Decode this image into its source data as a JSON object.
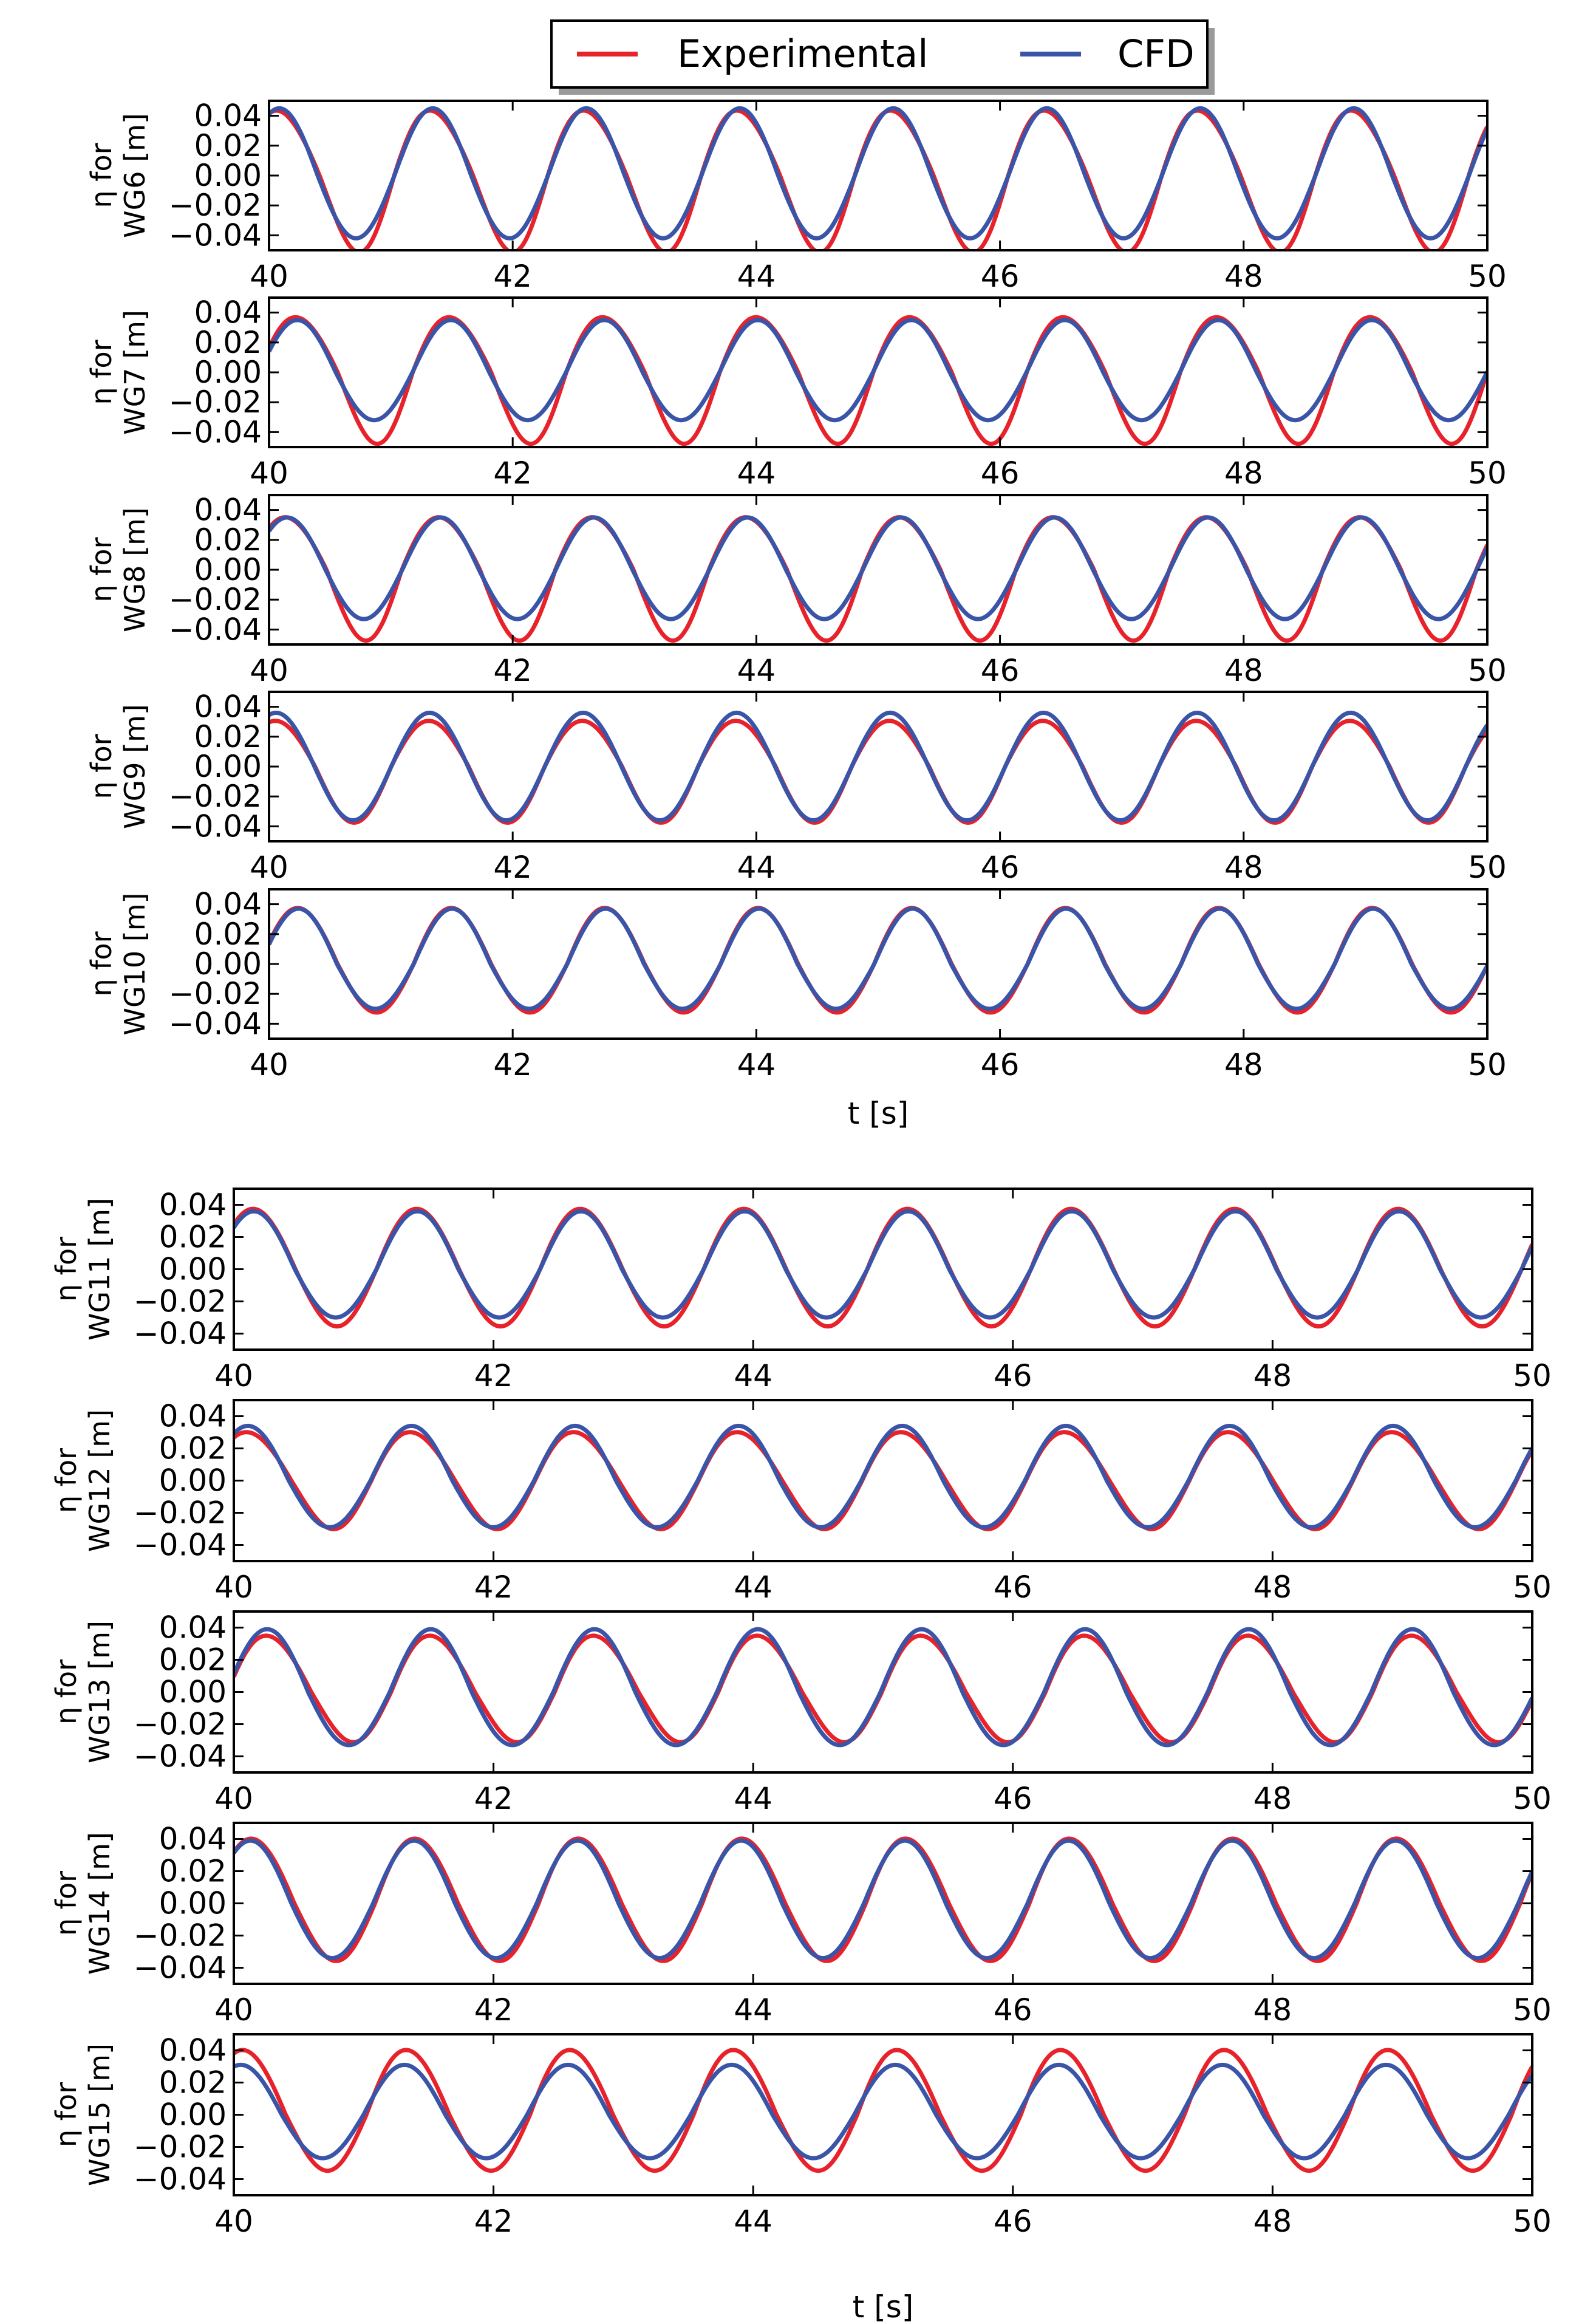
{
  "legend": {
    "entries": [
      {
        "label": "Experimental",
        "color": "#e8222a"
      },
      {
        "label": "CFD",
        "color": "#3a55a8"
      }
    ]
  },
  "chart_data": {
    "type": "line",
    "x_range": [
      40,
      50
    ],
    "x_ticks": [
      "40",
      "42",
      "44",
      "46",
      "48",
      "50"
    ],
    "y_ticks": [
      "0.04",
      "0.02",
      "0.00",
      "−0.02",
      "−0.04"
    ],
    "y_tick_values": [
      0.04,
      0.02,
      0.0,
      -0.02,
      -0.04
    ],
    "ylim": [
      -0.05,
      0.05
    ],
    "xlabel": "t [s]",
    "groups": [
      {
        "xlabel": "t [s]",
        "panels": [
          {
            "gauge": "WG6",
            "ylabel_line1": "η for",
            "ylabel_line2": "WG6 [m]",
            "exp": {
              "amp_pos": 0.045,
              "amp_neg": 0.049,
              "phase_shift": 0.45,
              "harm2": 0.006
            },
            "cfd": {
              "amp_pos": 0.045,
              "amp_neg": 0.042,
              "phase_shift": 0.42,
              "harm2": 0.0
            }
          },
          {
            "gauge": "WG7",
            "ylabel_line1": "η for",
            "ylabel_line2": "WG7 [m]",
            "exp": {
              "amp_pos": 0.038,
              "amp_neg": 0.046,
              "phase_shift": 1.2,
              "harm2": 0.005
            },
            "cfd": {
              "amp_pos": 0.035,
              "amp_neg": 0.032,
              "phase_shift": 1.16,
              "harm2": 0.0
            }
          },
          {
            "gauge": "WG8",
            "ylabel_line1": "η for",
            "ylabel_line2": "WG8 [m]",
            "exp": {
              "amp_pos": 0.036,
              "amp_neg": 0.046,
              "phase_shift": 0.75,
              "harm2": 0.004
            },
            "cfd": {
              "amp_pos": 0.035,
              "amp_neg": 0.033,
              "phase_shift": 0.74,
              "harm2": 0.0
            }
          },
          {
            "gauge": "WG9",
            "ylabel_line1": "η for",
            "ylabel_line2": "WG9 [m]",
            "exp": {
              "amp_pos": 0.031,
              "amp_neg": 0.037,
              "phase_shift": 0.3,
              "harm2": 0.002
            },
            "cfd": {
              "amp_pos": 0.036,
              "amp_neg": 0.036,
              "phase_shift": 0.29,
              "harm2": 0.0
            }
          },
          {
            "gauge": "WG10",
            "ylabel_line1": "η for",
            "ylabel_line2": "WG10 [m]",
            "exp": {
              "amp_pos": 0.038,
              "amp_neg": 0.032,
              "phase_shift": 1.22,
              "harm2": 0.002
            },
            "cfd": {
              "amp_pos": 0.037,
              "amp_neg": 0.03,
              "phase_shift": 1.21,
              "harm2": 0.0
            }
          }
        ]
      },
      {
        "xlabel": "t [s]",
        "panels": [
          {
            "gauge": "WG11",
            "ylabel_line1": "η for",
            "ylabel_line2": "WG11 [m]",
            "exp": {
              "amp_pos": 0.038,
              "amp_neg": 0.035,
              "phase_shift": 0.78,
              "harm2": 0.002
            },
            "cfd": {
              "amp_pos": 0.036,
              "amp_neg": 0.03,
              "phase_shift": 0.77,
              "harm2": 0.0
            }
          },
          {
            "gauge": "WG12",
            "ylabel_line1": "η for",
            "ylabel_line2": "WG12 [m]",
            "exp": {
              "amp_pos": 0.031,
              "amp_neg": 0.029,
              "phase_shift": 0.6,
              "harm2": 0.005
            },
            "cfd": {
              "amp_pos": 0.034,
              "amp_neg": 0.029,
              "phase_shift": 0.54,
              "harm2": 0.0
            }
          },
          {
            "gauge": "WG13",
            "ylabel_line1": "η for",
            "ylabel_line2": "WG13 [m]",
            "exp": {
              "amp_pos": 0.036,
              "amp_neg": 0.03,
              "phase_shift": 1.36,
              "harm2": 0.005
            },
            "cfd": {
              "amp_pos": 0.039,
              "amp_neg": 0.033,
              "phase_shift": 1.28,
              "harm2": 0.0
            }
          },
          {
            "gauge": "WG14",
            "ylabel_line1": "η for",
            "ylabel_line2": "WG14 [m]",
            "exp": {
              "amp_pos": 0.041,
              "amp_neg": 0.035,
              "phase_shift": 0.73,
              "harm2": 0.003
            },
            "cfd": {
              "amp_pos": 0.039,
              "amp_neg": 0.034,
              "phase_shift": 0.64,
              "harm2": 0.0
            }
          },
          {
            "gauge": "WG15",
            "ylabel_line1": "η for",
            "ylabel_line2": "WG15 [m]",
            "exp": {
              "amp_pos": 0.041,
              "amp_neg": 0.034,
              "phase_shift": 0.4,
              "harm2": 0.003
            },
            "cfd": {
              "amp_pos": 0.031,
              "amp_neg": 0.027,
              "phase_shift": 0.27,
              "harm2": 0.0
            }
          }
        ]
      }
    ],
    "wave_period": 1.26
  }
}
